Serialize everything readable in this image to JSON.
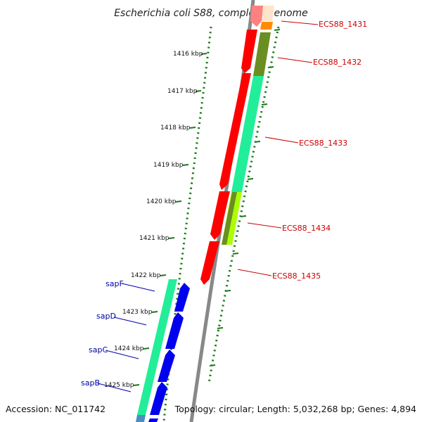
{
  "title": "Escherichia coli S88, complete genome",
  "footer": {
    "accession": "Accession: NC_011742",
    "summary": "Topology: circular; Length: 5,032,268 bp; Genes: 4,894"
  },
  "ticks": [
    "1416 kbp",
    "1417 kbp",
    "1418 kbp",
    "1419 kbp",
    "1420 kbp",
    "1421 kbp",
    "1422 kbp",
    "1423 kbp",
    "1424 kbp",
    "1425 kbp"
  ],
  "right_genes": [
    {
      "name": "ECS88_1431",
      "color": "#cc0000"
    },
    {
      "name": "ECS88_1432",
      "color": "#cc0000"
    },
    {
      "name": "ECS88_1433",
      "color": "#cc0000"
    },
    {
      "name": "ECS88_1434",
      "color": "#cc0000"
    },
    {
      "name": "ECS88_1435",
      "color": "#cc0000"
    }
  ],
  "left_genes": [
    {
      "name": "sapF",
      "color": "#0000aa"
    },
    {
      "name": "sapD",
      "color": "#0000aa"
    },
    {
      "name": "sapC",
      "color": "#0000aa"
    },
    {
      "name": "sapB",
      "color": "#0000aa"
    }
  ],
  "colors": {
    "forward_cds": "#ff0000",
    "reverse_cds": "#0000ee",
    "backbone": "#888888",
    "tick_dots": "#1a7a1a",
    "cog_green": "#22ee99",
    "cog_olive": "#6b8e23",
    "cog_lime": "#aaff00",
    "cog_orange": "#ff8c00"
  }
}
